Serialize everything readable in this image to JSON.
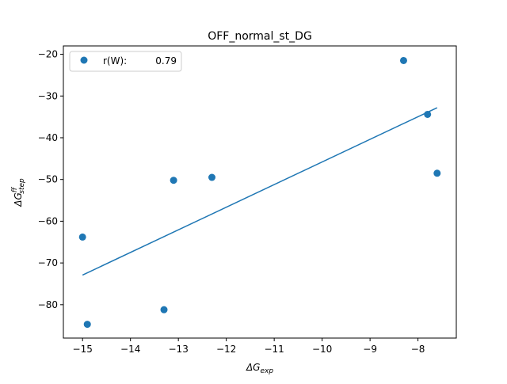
{
  "chart_data": {
    "type": "scatter",
    "title": "OFF_normal_st_DG",
    "xlabel": {
      "base": "ΔG",
      "sub": "exp"
    },
    "ylabel": {
      "base": "ΔG",
      "sup": "ff",
      "sub": "step"
    },
    "xlim": [
      -15.4,
      -7.2
    ],
    "ylim": [
      -88,
      -18
    ],
    "xticks": [
      -15,
      -14,
      -13,
      -12,
      -11,
      -10,
      -9,
      -8
    ],
    "yticks": [
      -20,
      -30,
      -40,
      -50,
      -60,
      -70,
      -80
    ],
    "grid": false,
    "legend": {
      "placement": "top-left",
      "label": "r(W):",
      "value": "0.79"
    },
    "series": [
      {
        "kind": "points",
        "color": "#1f77b4",
        "x": [
          -15.0,
          -14.9,
          -13.3,
          -13.1,
          -12.3,
          -8.3,
          -7.8,
          -7.6
        ],
        "y": [
          -63.8,
          -84.7,
          -81.2,
          -50.2,
          -49.5,
          -21.5,
          -34.4,
          -48.5
        ]
      },
      {
        "kind": "fit-line",
        "color": "#1f77b4",
        "x": [
          -15.0,
          -7.6
        ],
        "y": [
          -72.9,
          -32.8
        ]
      }
    ]
  }
}
